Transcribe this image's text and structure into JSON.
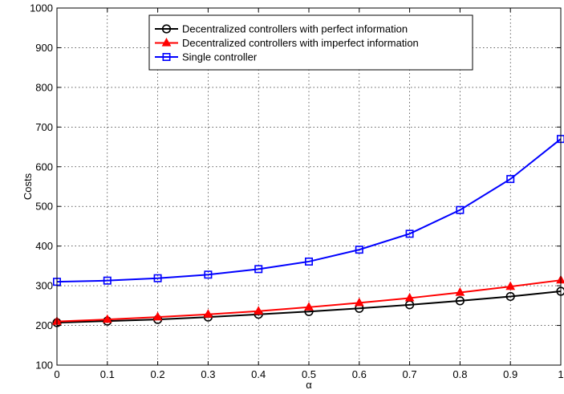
{
  "chart_data": {
    "type": "line",
    "title": "",
    "xlabel": "α",
    "ylabel": "Costs",
    "xlim": [
      0,
      1
    ],
    "ylim": [
      100,
      1000
    ],
    "xticks": [
      0,
      0.1,
      0.2,
      0.3,
      0.4,
      0.5,
      0.6,
      0.7,
      0.8,
      0.9,
      1
    ],
    "xtick_labels": [
      "0",
      "0.1",
      "0.2",
      "0.3",
      "0.4",
      "0.5",
      "0.6",
      "0.7",
      "0.8",
      "0.9",
      "1"
    ],
    "yticks": [
      100,
      200,
      300,
      400,
      500,
      600,
      700,
      800,
      900,
      1000
    ],
    "ytick_labels": [
      "100",
      "200",
      "300",
      "400",
      "500",
      "600",
      "700",
      "800",
      "900",
      "1000"
    ],
    "grid": true,
    "legend_position": "top-center",
    "x": [
      0,
      0.1,
      0.2,
      0.3,
      0.4,
      0.5,
      0.6,
      0.7,
      0.8,
      0.9,
      1
    ],
    "series": [
      {
        "name": "Decentralized controllers with perfect information",
        "color": "#000000",
        "marker": "circle",
        "values": [
          207,
          211,
          215,
          221,
          228,
          235,
          243,
          252,
          262,
          273,
          286
        ]
      },
      {
        "name": "Decentralized controllers with imperfect information",
        "color": "#ff0000",
        "marker": "triangle",
        "values": [
          210,
          215,
          221,
          228,
          236,
          246,
          257,
          269,
          283,
          298,
          314
        ]
      },
      {
        "name": "Single controller",
        "color": "#0000ff",
        "marker": "square",
        "values": [
          310,
          313,
          319,
          328,
          342,
          361,
          391,
          431,
          491,
          569,
          670
        ]
      }
    ]
  }
}
